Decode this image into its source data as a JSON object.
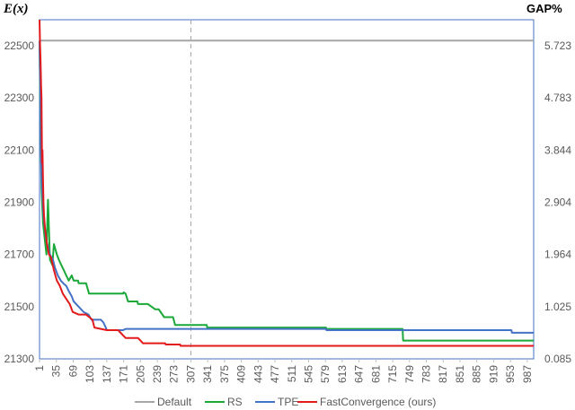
{
  "chart_data": {
    "type": "line",
    "ylabel": "E(x)",
    "y2label": "GAP%",
    "ylim": [
      21300,
      22600
    ],
    "yticks": [
      21300,
      21500,
      21700,
      21900,
      22100,
      22300,
      22500
    ],
    "y2ticks": [
      "0.085",
      "1.025",
      "1.964",
      "2.904",
      "3.844",
      "4.783",
      "5.723"
    ],
    "xlim": [
      1,
      1000
    ],
    "xticks": [
      1,
      35,
      69,
      103,
      137,
      171,
      205,
      239,
      273,
      307,
      341,
      375,
      409,
      443,
      477,
      511,
      545,
      579,
      613,
      647,
      681,
      715,
      749,
      783,
      817,
      851,
      885,
      919,
      953,
      987
    ],
    "vline_x": 307,
    "grid": false,
    "legend_position": "bottom",
    "series": [
      {
        "name": "Default",
        "color": "#a6a6a6",
        "x": [
          1,
          1000
        ],
        "y": [
          22520,
          22520
        ]
      },
      {
        "name": "RS",
        "color": "#1aa838",
        "x": [
          1,
          5,
          8,
          12,
          15,
          18,
          22,
          27,
          30,
          36,
          40,
          45,
          50,
          55,
          60,
          66,
          70,
          79,
          80,
          95,
          101,
          170,
          171,
          175,
          180,
          199,
          200,
          220,
          235,
          242,
          253,
          271,
          275,
          339,
          340,
          580,
          581,
          735,
          736,
          1000
        ],
        "y": [
          22500,
          21950,
          21820,
          21750,
          21700,
          21910,
          21680,
          21660,
          21740,
          21700,
          21680,
          21660,
          21640,
          21620,
          21600,
          21620,
          21600,
          21600,
          21590,
          21590,
          21550,
          21550,
          21555,
          21550,
          21520,
          21520,
          21510,
          21510,
          21490,
          21490,
          21460,
          21460,
          21430,
          21430,
          21420,
          21420,
          21415,
          21415,
          21370,
          21370
        ]
      },
      {
        "name": "TPE",
        "color": "#4472c4",
        "x": [
          1,
          5,
          9,
          14,
          18,
          22,
          28,
          32,
          38,
          44,
          49,
          55,
          60,
          66,
          70,
          80,
          90,
          100,
          106,
          125,
          130,
          135,
          137,
          170,
          175,
          580,
          581,
          955,
          956,
          1000
        ],
        "y": [
          22520,
          22000,
          21850,
          21760,
          21730,
          21700,
          21680,
          21650,
          21620,
          21600,
          21590,
          21580,
          21560,
          21540,
          21520,
          21500,
          21480,
          21470,
          21450,
          21450,
          21440,
          21420,
          21410,
          21410,
          21415,
          21415,
          21410,
          21410,
          21400,
          21400
        ]
      },
      {
        "name": "FastConvergence (ours)",
        "color": "#e31a1c",
        "x": [
          1,
          2,
          3,
          4,
          5,
          6,
          7,
          8,
          9,
          10,
          12,
          14,
          16,
          18,
          20,
          24,
          30,
          36,
          42,
          48,
          55,
          62,
          68,
          80,
          95,
          108,
          112,
          137,
          160,
          170,
          175,
          200,
          210,
          255,
          256,
          285,
          286,
          1000
        ],
        "y": [
          22600,
          22500,
          22450,
          22350,
          22300,
          22050,
          22100,
          21980,
          21900,
          21850,
          21800,
          21770,
          21740,
          21720,
          21700,
          21690,
          21640,
          21600,
          21580,
          21550,
          21530,
          21510,
          21480,
          21470,
          21470,
          21450,
          21420,
          21410,
          21410,
          21390,
          21380,
          21380,
          21360,
          21360,
          21355,
          21355,
          21350,
          21350
        ]
      }
    ]
  }
}
